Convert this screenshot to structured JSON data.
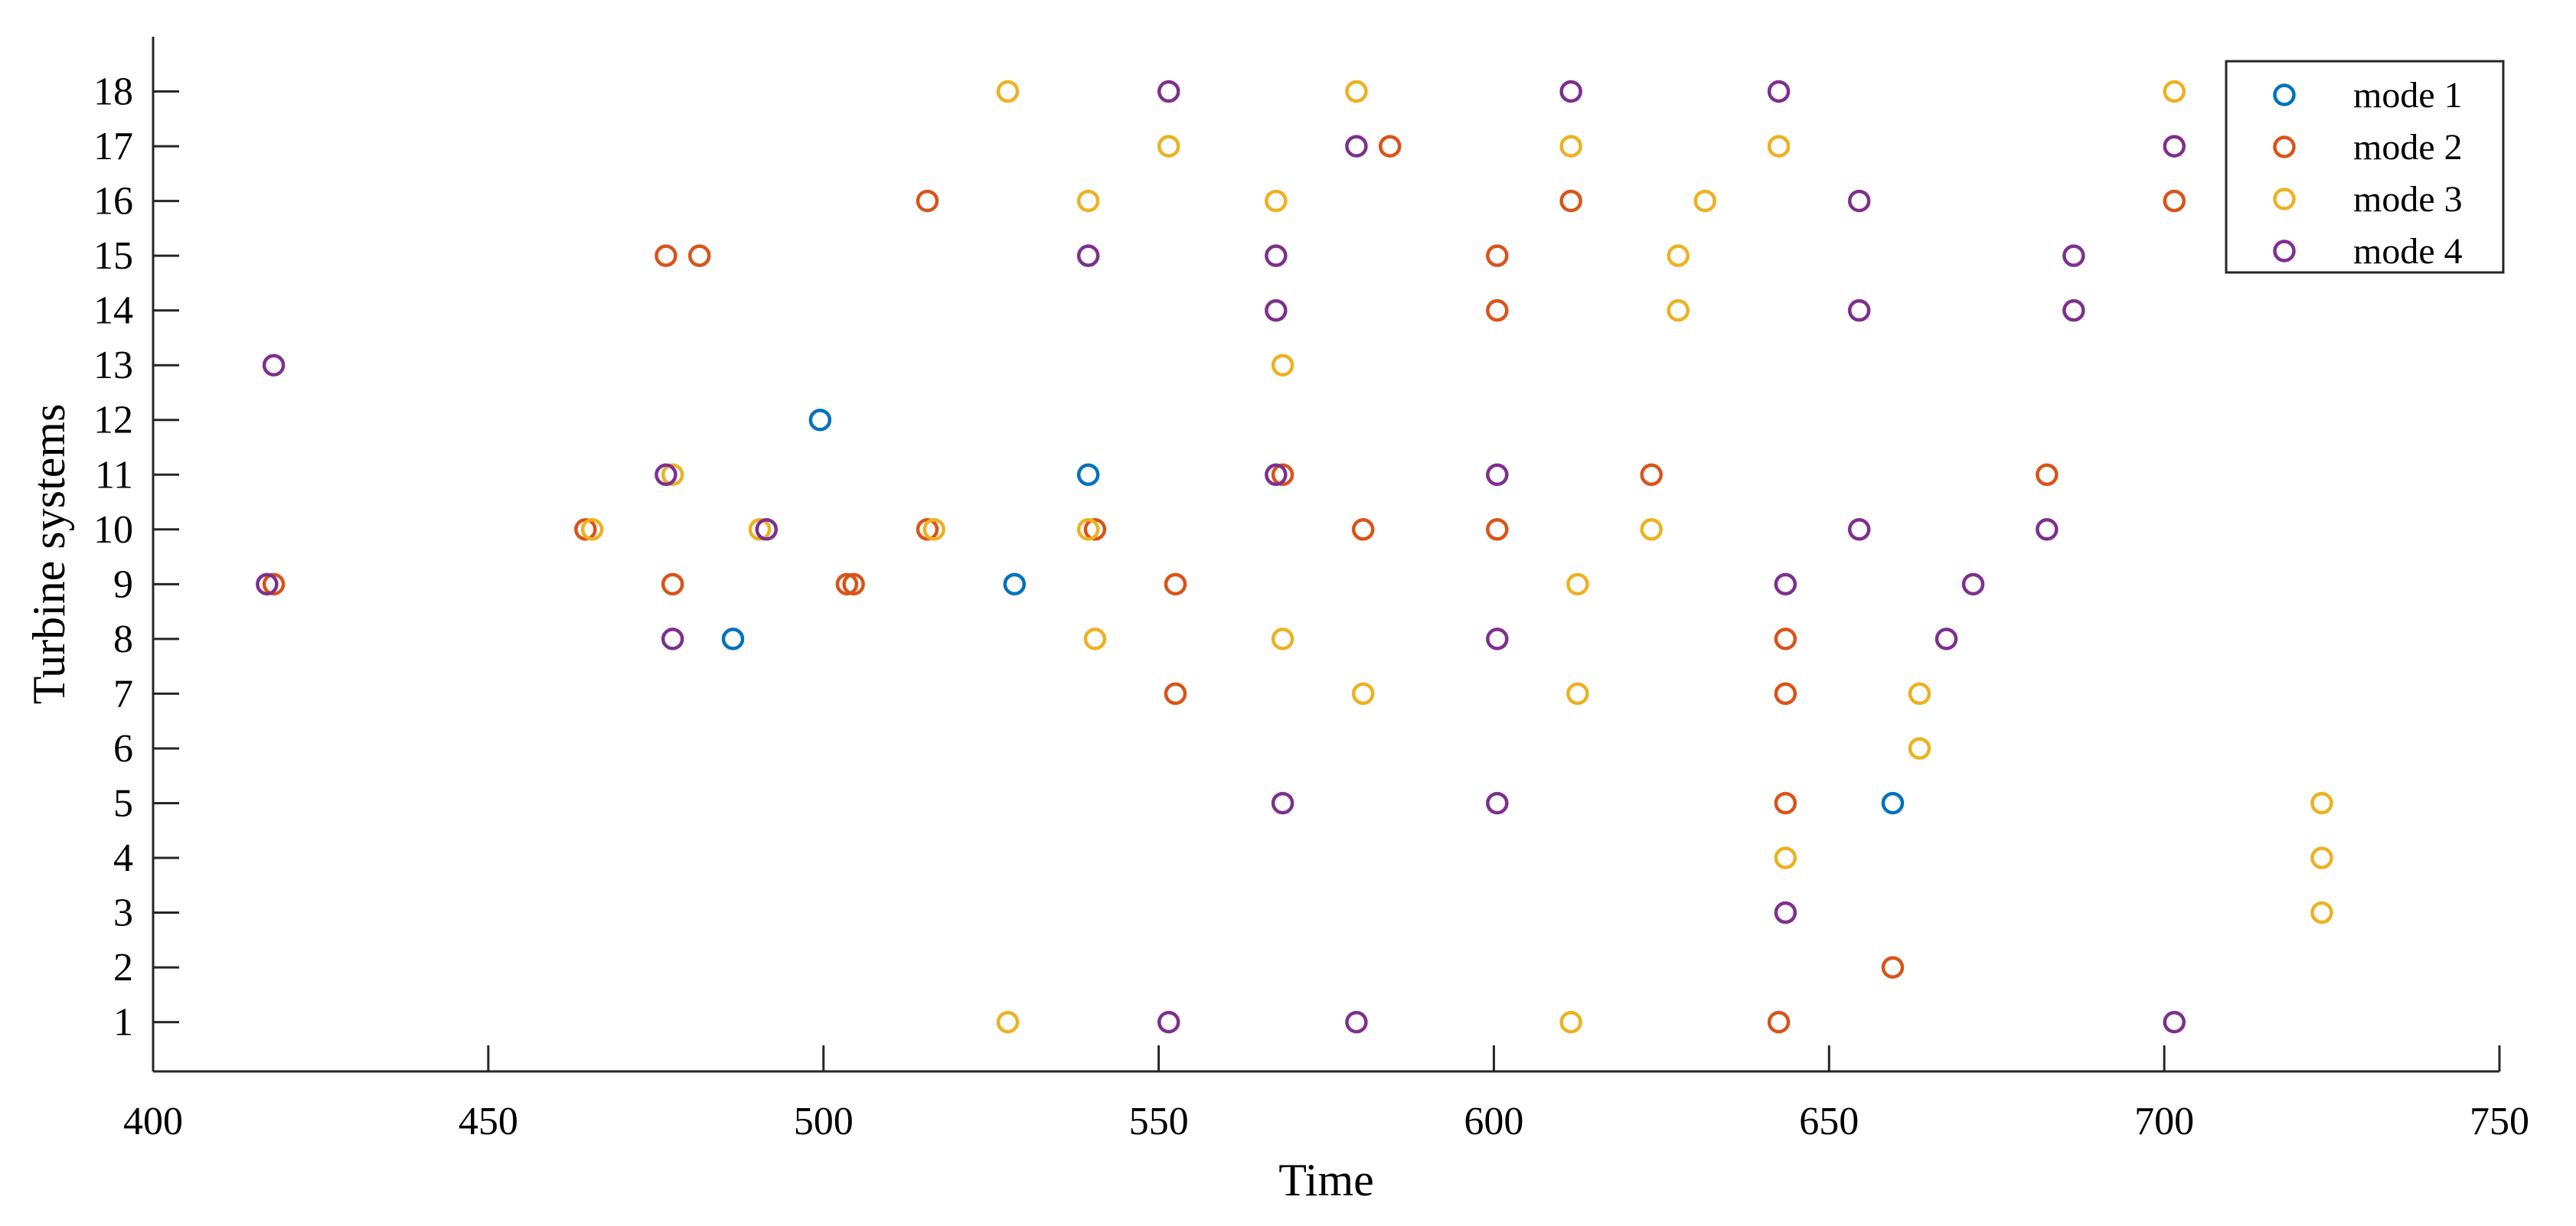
{
  "chart_data": {
    "type": "scatter",
    "title": "",
    "xlabel": "Time",
    "ylabel": "Turbine systems",
    "xlim": [
      400,
      750
    ],
    "ylim": [
      0.1,
      19
    ],
    "xticks": [
      400,
      450,
      500,
      550,
      600,
      650,
      700,
      750
    ],
    "yticks": [
      1,
      2,
      3,
      4,
      5,
      6,
      7,
      8,
      9,
      10,
      11,
      12,
      13,
      14,
      15,
      16,
      17,
      18
    ],
    "grid": false,
    "legend_position": "top-right",
    "series": [
      {
        "name": "mode 1",
        "color": "#0072BD",
        "marker": "open-circle",
        "points": [
          [
            486.5,
            8
          ],
          [
            499.5,
            12
          ],
          [
            528.5,
            9
          ],
          [
            539.5,
            11
          ],
          [
            659.5,
            5
          ]
        ]
      },
      {
        "name": "mode 2",
        "color": "#D95319",
        "marker": "open-circle",
        "points": [
          [
            418,
            9
          ],
          [
            464.5,
            10
          ],
          [
            476.5,
            15
          ],
          [
            477.5,
            9
          ],
          [
            481.5,
            15
          ],
          [
            503.5,
            9
          ],
          [
            504.5,
            9
          ],
          [
            515.5,
            16
          ],
          [
            515.5,
            10
          ],
          [
            540.5,
            10
          ],
          [
            552.5,
            9
          ],
          [
            552.5,
            7
          ],
          [
            568.5,
            11
          ],
          [
            580.5,
            10
          ],
          [
            584.5,
            17
          ],
          [
            600.5,
            15
          ],
          [
            600.5,
            14
          ],
          [
            600.5,
            10
          ],
          [
            611.5,
            16
          ],
          [
            623.5,
            11
          ],
          [
            642.5,
            1
          ],
          [
            643.5,
            8
          ],
          [
            643.5,
            7
          ],
          [
            643.5,
            5
          ],
          [
            659.5,
            2
          ],
          [
            682.5,
            11
          ],
          [
            701.5,
            16
          ]
        ]
      },
      {
        "name": "mode 3",
        "color": "#EDB120",
        "marker": "open-circle",
        "points": [
          [
            465.5,
            10
          ],
          [
            477.5,
            11
          ],
          [
            490.5,
            10
          ],
          [
            516.5,
            10
          ],
          [
            527.5,
            18
          ],
          [
            527.5,
            1
          ],
          [
            539.5,
            16
          ],
          [
            539.5,
            10
          ],
          [
            540.5,
            8
          ],
          [
            551.5,
            17
          ],
          [
            567.5,
            16
          ],
          [
            568.5,
            13
          ],
          [
            568.5,
            8
          ],
          [
            579.5,
            18
          ],
          [
            580.5,
            7
          ],
          [
            611.5,
            17
          ],
          [
            611.5,
            1
          ],
          [
            612.5,
            9
          ],
          [
            612.5,
            7
          ],
          [
            623.5,
            10
          ],
          [
            627.5,
            15
          ],
          [
            627.5,
            14
          ],
          [
            631.5,
            16
          ],
          [
            642.5,
            17
          ],
          [
            643.5,
            4
          ],
          [
            663.5,
            7
          ],
          [
            663.5,
            6
          ],
          [
            701.5,
            18
          ],
          [
            723.5,
            5
          ],
          [
            723.5,
            4
          ],
          [
            723.5,
            3
          ]
        ]
      },
      {
        "name": "mode 4",
        "color": "#7E2F8E",
        "marker": "open-circle",
        "points": [
          [
            417,
            9
          ],
          [
            418,
            13
          ],
          [
            476.5,
            11
          ],
          [
            477.5,
            8
          ],
          [
            491.5,
            10
          ],
          [
            539.5,
            15
          ],
          [
            551.5,
            18
          ],
          [
            551.5,
            1
          ],
          [
            567.5,
            15
          ],
          [
            567.5,
            14
          ],
          [
            567.5,
            11
          ],
          [
            568.5,
            5
          ],
          [
            579.5,
            17
          ],
          [
            579.5,
            1
          ],
          [
            600.5,
            11
          ],
          [
            600.5,
            8
          ],
          [
            600.5,
            5
          ],
          [
            611.5,
            18
          ],
          [
            642.5,
            18
          ],
          [
            643.5,
            9
          ],
          [
            643.5,
            3
          ],
          [
            654.5,
            16
          ],
          [
            654.5,
            14
          ],
          [
            654.5,
            10
          ],
          [
            667.5,
            8
          ],
          [
            671.5,
            9
          ],
          [
            682.5,
            10
          ],
          [
            686.5,
            15
          ],
          [
            686.5,
            14
          ],
          [
            701.5,
            17
          ],
          [
            701.5,
            1
          ]
        ]
      }
    ]
  }
}
